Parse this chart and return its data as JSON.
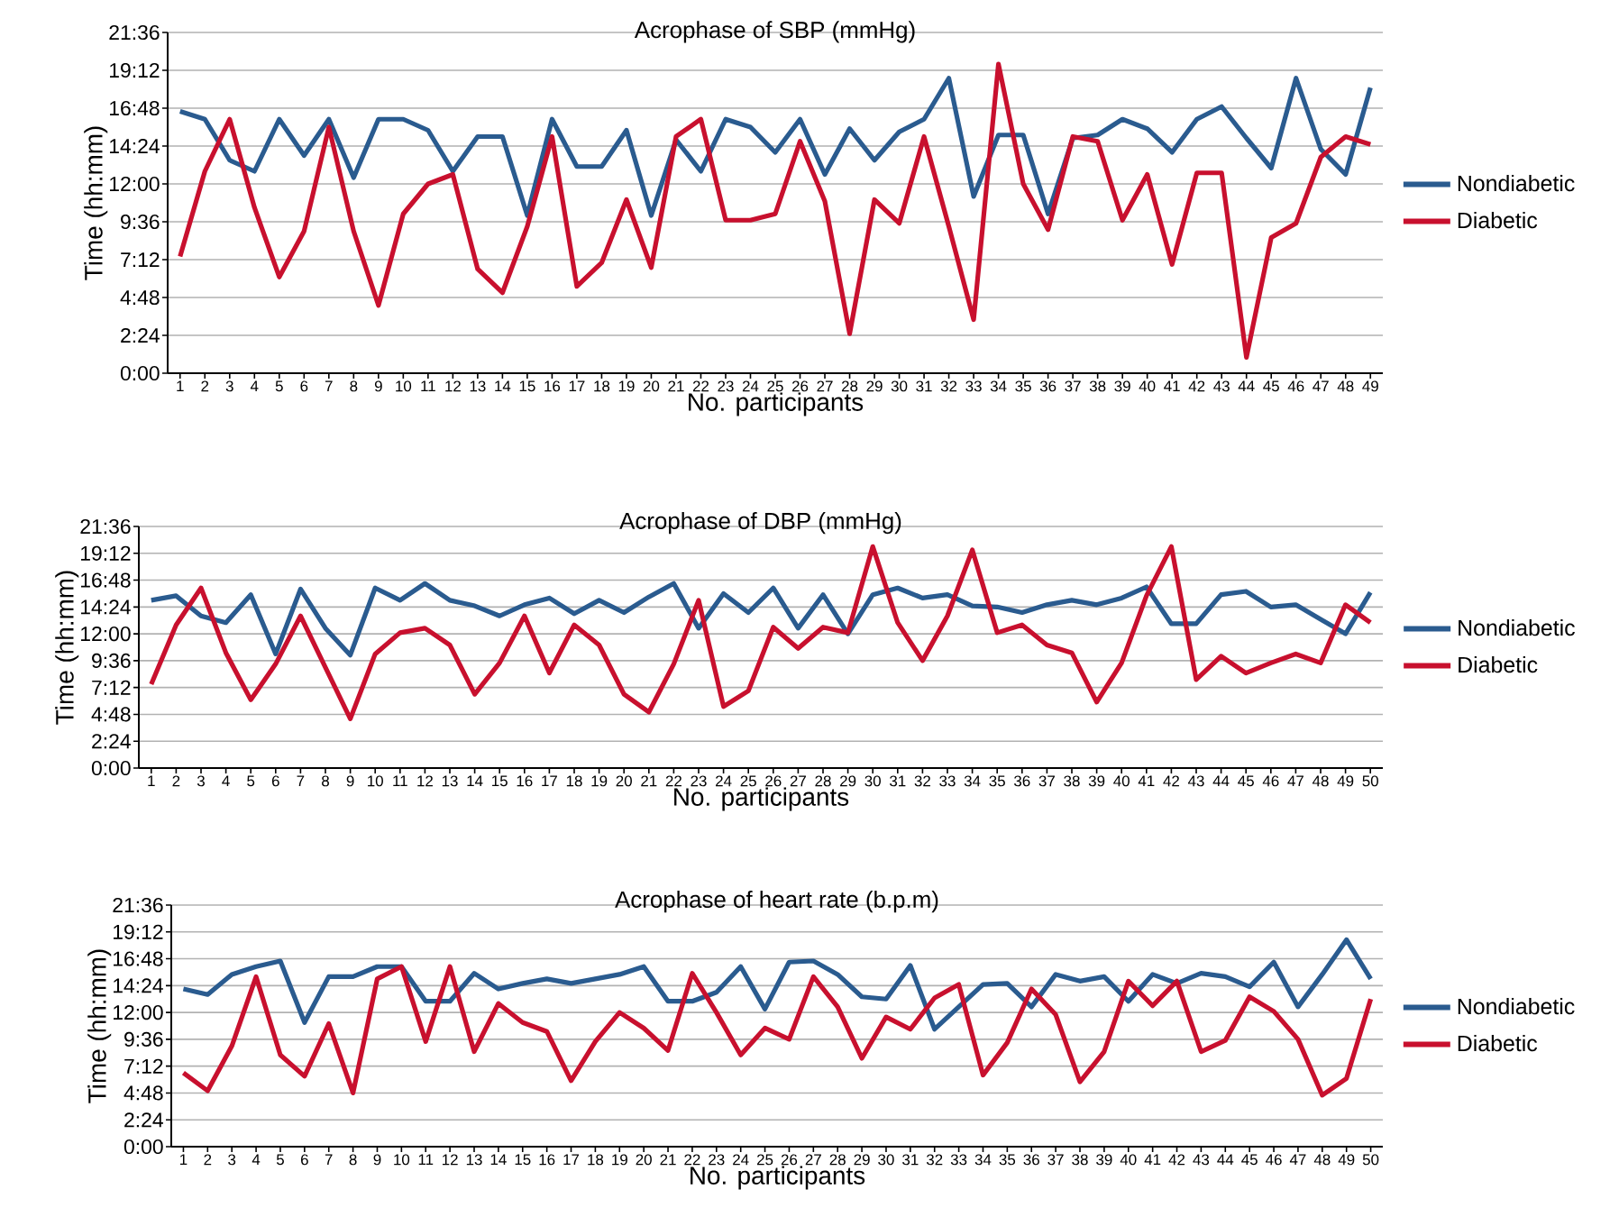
{
  "chart_data": [
    {
      "type": "line",
      "title": "Acrophase of SBP (mmHg)",
      "xlabel": "No. participants",
      "ylabel": "Time (hh:mm)",
      "categories": [
        "1",
        "2",
        "3",
        "4",
        "5",
        "6",
        "7",
        "8",
        "9",
        "10",
        "11",
        "12",
        "13",
        "14",
        "15",
        "16",
        "17",
        "18",
        "19",
        "20",
        "21",
        "22",
        "23",
        "24",
        "25",
        "26",
        "27",
        "28",
        "29",
        "30",
        "31",
        "32",
        "33",
        "34",
        "35",
        "36",
        "37",
        "38",
        "39",
        "40",
        "41",
        "42",
        "43",
        "44",
        "45",
        "46",
        "47",
        "48",
        "49"
      ],
      "series": [
        {
          "name": "Nondiabetic",
          "color": "#2a5b8f",
          "values": [
            16.6,
            16.1,
            13.5,
            12.8,
            16.1,
            13.8,
            16.1,
            12.4,
            16.1,
            16.1,
            15.4,
            12.8,
            15.0,
            15.0,
            10.0,
            16.1,
            13.1,
            13.1,
            15.4,
            10.0,
            14.8,
            12.8,
            16.1,
            15.6,
            14.0,
            16.1,
            12.6,
            15.5,
            13.5,
            15.3,
            16.1,
            18.7,
            11.2,
            15.1,
            15.1,
            10.1,
            14.9,
            15.1,
            16.1,
            15.5,
            14.0,
            16.1,
            16.9,
            14.9,
            13.0,
            18.7,
            14.2,
            12.6,
            18.1
          ]
        },
        {
          "name": "Diabetic",
          "color": "#c8102e",
          "values": [
            7.4,
            12.8,
            16.1,
            10.5,
            6.1,
            9.0,
            15.6,
            9.0,
            4.3,
            10.1,
            12.0,
            12.6,
            6.6,
            5.1,
            9.3,
            15.0,
            5.5,
            7.0,
            11.0,
            6.7,
            15.0,
            16.1,
            9.7,
            9.7,
            10.1,
            14.7,
            10.9,
            2.5,
            11.0,
            9.5,
            15.0,
            9.3,
            3.4,
            19.6,
            12.0,
            9.1,
            15.0,
            14.7,
            9.7,
            12.6,
            6.9,
            12.7,
            12.7,
            1.0,
            8.6,
            9.5,
            13.7,
            15.0,
            14.5
          ]
        }
      ],
      "ylim": [
        0,
        21.6
      ],
      "yticks": [
        {
          "value": 0,
          "label": "0:00"
        },
        {
          "value": 2.4,
          "label": "2:24"
        },
        {
          "value": 4.8,
          "label": "4:48"
        },
        {
          "value": 7.2,
          "label": "7:12"
        },
        {
          "value": 9.6,
          "label": "9:36"
        },
        {
          "value": 12,
          "label": "12:00"
        },
        {
          "value": 14.4,
          "label": "14:24"
        },
        {
          "value": 16.8,
          "label": "16:48"
        },
        {
          "value": 19.2,
          "label": "19:12"
        },
        {
          "value": 21.6,
          "label": "21:36"
        }
      ],
      "grid": "y",
      "legend": "right"
    },
    {
      "type": "line",
      "title": "Acrophase of DBP (mmHg)",
      "xlabel": "No. participants",
      "ylabel": "Time (hh:mm)",
      "categories": [
        "1",
        "2",
        "3",
        "4",
        "5",
        "6",
        "7",
        "8",
        "9",
        "10",
        "11",
        "12",
        "13",
        "14",
        "15",
        "16",
        "17",
        "18",
        "19",
        "20",
        "21",
        "22",
        "23",
        "24",
        "25",
        "26",
        "27",
        "28",
        "29",
        "30",
        "31",
        "32",
        "33",
        "34",
        "35",
        "36",
        "37",
        "38",
        "39",
        "40",
        "41",
        "42",
        "43",
        "44",
        "45",
        "46",
        "47",
        "48",
        "49",
        "50"
      ],
      "series": [
        {
          "name": "Nondiabetic",
          "color": "#2a5b8f",
          "values": [
            15.0,
            15.4,
            13.6,
            13.0,
            15.5,
            10.2,
            16.0,
            12.5,
            10.1,
            16.1,
            15.0,
            16.5,
            15.0,
            14.5,
            13.6,
            14.6,
            15.2,
            13.8,
            15.0,
            13.9,
            15.3,
            16.5,
            12.5,
            15.6,
            13.9,
            16.1,
            12.5,
            15.5,
            12.0,
            15.5,
            16.1,
            15.2,
            15.5,
            14.5,
            14.4,
            13.9,
            14.6,
            15.0,
            14.6,
            15.2,
            16.2,
            12.9,
            12.9,
            15.5,
            15.8,
            14.4,
            14.6,
            13.3,
            12.0,
            15.7
          ]
        },
        {
          "name": "Diabetic",
          "color": "#c8102e",
          "values": [
            7.5,
            12.8,
            16.1,
            10.3,
            6.1,
            9.3,
            13.6,
            9.0,
            4.4,
            10.2,
            12.1,
            12.5,
            11.0,
            6.6,
            9.4,
            13.6,
            8.5,
            12.8,
            11.0,
            6.6,
            5.0,
            9.3,
            15.0,
            5.5,
            6.9,
            12.6,
            10.7,
            12.6,
            12.1,
            19.8,
            13.0,
            9.6,
            13.6,
            19.5,
            12.1,
            12.8,
            11.0,
            10.3,
            5.9,
            9.4,
            15.4,
            19.8,
            7.9,
            10.0,
            8.5,
            9.4,
            10.2,
            9.4,
            14.6,
            13.0
          ]
        }
      ],
      "ylim": [
        0,
        21.6
      ],
      "yticks": [
        {
          "value": 0,
          "label": "0:00"
        },
        {
          "value": 2.4,
          "label": "2:24"
        },
        {
          "value": 4.8,
          "label": "4:48"
        },
        {
          "value": 7.2,
          "label": "7:12"
        },
        {
          "value": 9.6,
          "label": "9:36"
        },
        {
          "value": 12,
          "label": "12:00"
        },
        {
          "value": 14.4,
          "label": "14:24"
        },
        {
          "value": 16.8,
          "label": "16:48"
        },
        {
          "value": 19.2,
          "label": "19:12"
        },
        {
          "value": 21.6,
          "label": "21:36"
        }
      ],
      "grid": "y",
      "legend": "right"
    },
    {
      "type": "line",
      "title": "Acrophase of heart rate (b.p.m)",
      "xlabel": "No. participants",
      "ylabel": "Time (hh:mm)",
      "categories": [
        "1",
        "2",
        "3",
        "4",
        "5",
        "6",
        "7",
        "8",
        "9",
        "10",
        "11",
        "12",
        "13",
        "14",
        "15",
        "16",
        "17",
        "18",
        "19",
        "20",
        "21",
        "22",
        "23",
        "24",
        "25",
        "26",
        "27",
        "28",
        "29",
        "30",
        "31",
        "32",
        "33",
        "34",
        "35",
        "36",
        "37",
        "38",
        "39",
        "40",
        "41",
        "42",
        "43",
        "44",
        "45",
        "46",
        "47",
        "48",
        "49",
        "50"
      ],
      "series": [
        {
          "name": "Nondiabetic",
          "color": "#2a5b8f",
          "values": [
            14.1,
            13.6,
            15.4,
            16.1,
            16.6,
            11.1,
            15.2,
            15.2,
            16.1,
            16.1,
            13.0,
            13.0,
            15.5,
            14.1,
            14.6,
            15.0,
            14.6,
            15.0,
            15.4,
            16.1,
            13.0,
            13.0,
            13.8,
            16.1,
            12.3,
            16.5,
            16.6,
            15.4,
            13.4,
            13.2,
            16.2,
            10.5,
            12.5,
            14.5,
            14.6,
            12.5,
            15.4,
            14.8,
            15.2,
            13.0,
            15.4,
            14.6,
            15.5,
            15.2,
            14.3,
            16.5,
            12.5,
            15.4,
            18.5,
            15.0
          ]
        },
        {
          "name": "Diabetic",
          "color": "#c8102e",
          "values": [
            6.6,
            5.0,
            9.0,
            15.2,
            8.2,
            6.3,
            11.0,
            4.8,
            15.0,
            16.1,
            9.4,
            16.1,
            8.5,
            12.8,
            11.1,
            10.3,
            5.9,
            9.4,
            12.0,
            10.6,
            8.6,
            15.5,
            12.0,
            8.2,
            10.6,
            9.6,
            15.2,
            12.5,
            7.9,
            11.6,
            10.5,
            13.3,
            14.5,
            6.4,
            9.3,
            14.1,
            11.8,
            5.8,
            8.5,
            14.8,
            12.6,
            14.8,
            8.5,
            9.5,
            13.4,
            12.1,
            9.6,
            4.6,
            6.1,
            13.2
          ]
        }
      ],
      "ylim": [
        0,
        21.6
      ],
      "yticks": [
        {
          "value": 0,
          "label": "0:00"
        },
        {
          "value": 2.4,
          "label": "2:24"
        },
        {
          "value": 4.8,
          "label": "4:48"
        },
        {
          "value": 7.2,
          "label": "7:12"
        },
        {
          "value": 9.6,
          "label": "9:36"
        },
        {
          "value": 12,
          "label": "12:00"
        },
        {
          "value": 14.4,
          "label": "14:24"
        },
        {
          "value": 16.8,
          "label": "16:48"
        },
        {
          "value": 19.2,
          "label": "19:12"
        },
        {
          "value": 21.6,
          "label": "21:36"
        }
      ],
      "grid": "y",
      "legend": "right"
    }
  ]
}
